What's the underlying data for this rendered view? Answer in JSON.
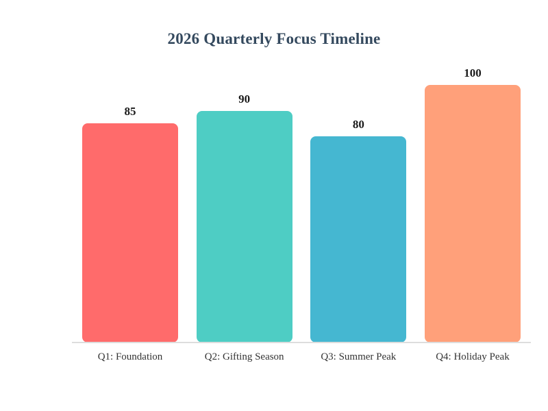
{
  "chart_data": {
    "type": "bar",
    "title": "2026 Quarterly Focus Timeline",
    "categories": [
      "Q1: Foundation",
      "Q2: Gifting Season",
      "Q3: Summer Peak",
      "Q4: Holiday Peak"
    ],
    "values": [
      85,
      90,
      80,
      100
    ],
    "colors": [
      "#ff6b6b",
      "#4ecdc4",
      "#45b7d1",
      "#ffa07a"
    ],
    "title_color": "#34495e",
    "value_label_color": "#1a1a1a",
    "category_label_color": "#333333",
    "axis_line_color": "#dddddd",
    "background_color": "#ffffff",
    "xlabel": "",
    "ylabel": "",
    "ylim": [
      0,
      100
    ],
    "grid": false,
    "legend": false,
    "value_labels_shown": true,
    "orientation": "vertical"
  }
}
